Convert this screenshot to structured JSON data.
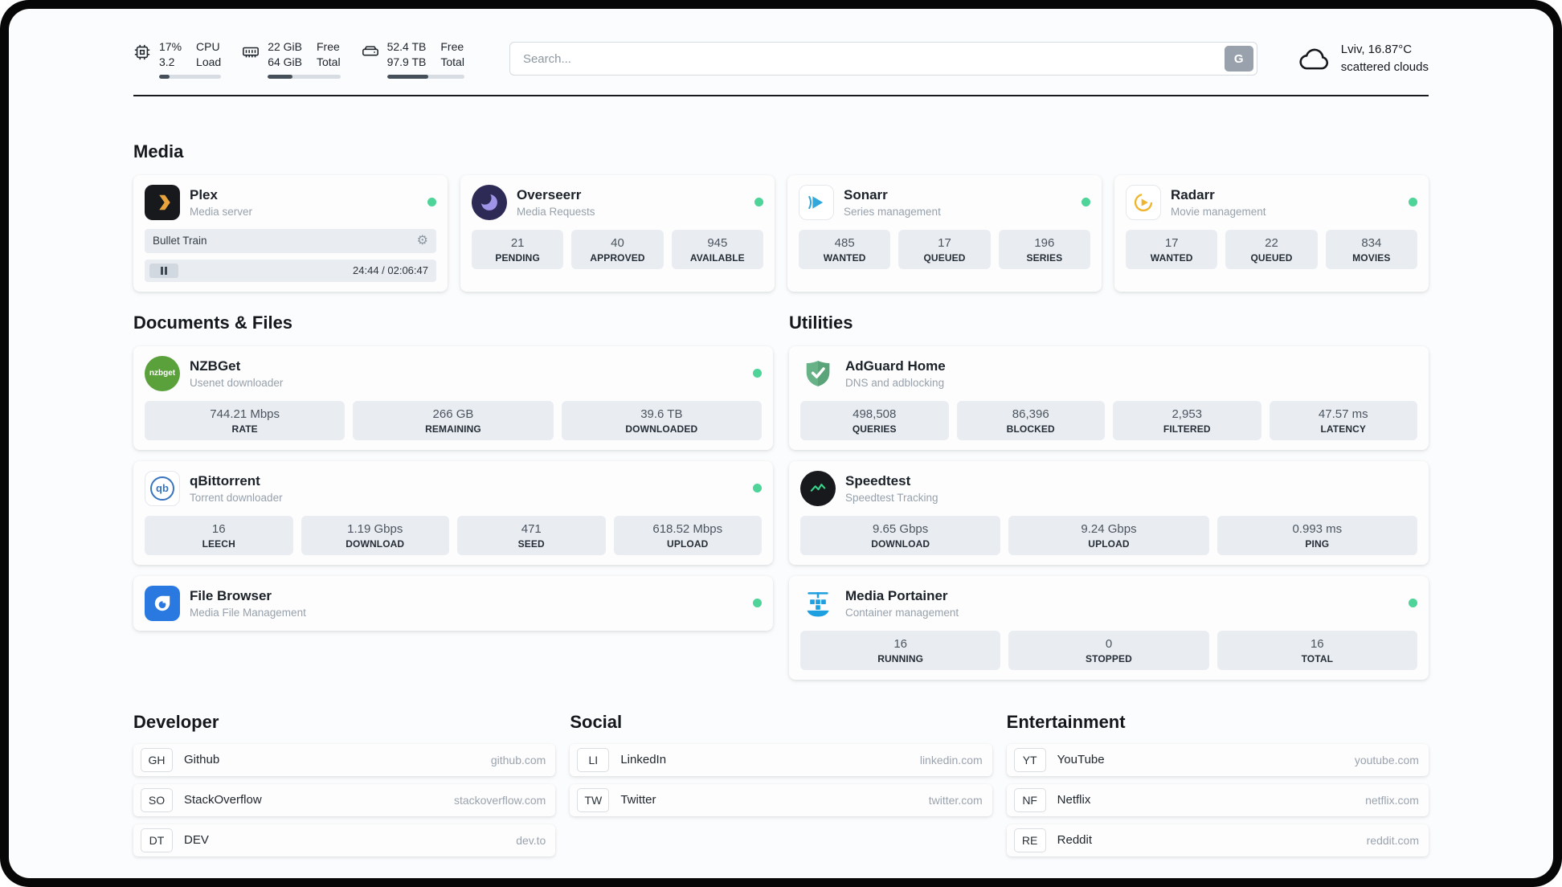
{
  "theme": {
    "status_green": "#4ed398",
    "plex_gold": "#e8a33d",
    "overseerr_purple": "#9f94e8",
    "sonarr_blue": "#32a7da",
    "radarr_gold": "#f0b52e",
    "nzbget_green": "#5aa13c",
    "qbittorrent_blue": "#3873c0",
    "filebrowser_blue": "#2a79e0",
    "adguard_green": "#67b287",
    "speedtest_green": "#35d488",
    "portainer_blue": "#1d9fe0"
  },
  "header": {
    "cpu": {
      "values": [
        "17%",
        "3.2"
      ],
      "labels": [
        "CPU",
        "Load"
      ],
      "progress": 17
    },
    "ram": {
      "values": [
        "22 GiB",
        "64 GiB"
      ],
      "labels": [
        "Free",
        "Total"
      ],
      "progress": 34
    },
    "disk": {
      "values": [
        "52.4 TB",
        "97.9 TB"
      ],
      "labels": [
        "Free",
        "Total"
      ],
      "progress": 53
    },
    "search": {
      "placeholder": "Search...",
      "button_label": "G"
    },
    "weather": {
      "location": "Lviv, 16.87°C",
      "condition": "scattered clouds"
    }
  },
  "media": {
    "title": "Media",
    "plex": {
      "name": "Plex",
      "desc": "Media server",
      "now_playing": "Bullet Train",
      "time": "24:44 / 02:06:47"
    },
    "overseerr": {
      "name": "Overseerr",
      "desc": "Media Requests",
      "stats": [
        {
          "value": "21",
          "label": "PENDING"
        },
        {
          "value": "40",
          "label": "APPROVED"
        },
        {
          "value": "945",
          "label": "AVAILABLE"
        }
      ]
    },
    "sonarr": {
      "name": "Sonarr",
      "desc": "Series management",
      "stats": [
        {
          "value": "485",
          "label": "WANTED"
        },
        {
          "value": "17",
          "label": "QUEUED"
        },
        {
          "value": "196",
          "label": "SERIES"
        }
      ]
    },
    "radarr": {
      "name": "Radarr",
      "desc": "Movie management",
      "stats": [
        {
          "value": "17",
          "label": "WANTED"
        },
        {
          "value": "22",
          "label": "QUEUED"
        },
        {
          "value": "834",
          "label": "MOVIES"
        }
      ]
    }
  },
  "documents": {
    "title": "Documents & Files",
    "nzbget": {
      "name": "NZBGet",
      "desc": "Usenet downloader",
      "icon_text": "nzbget",
      "stats": [
        {
          "value": "744.21 Mbps",
          "label": "RATE"
        },
        {
          "value": "266 GB",
          "label": "REMAINING"
        },
        {
          "value": "39.6 TB",
          "label": "DOWNLOADED"
        }
      ]
    },
    "qbittorrent": {
      "name": "qBittorrent",
      "desc": "Torrent downloader",
      "icon_text": "qb",
      "stats": [
        {
          "value": "16",
          "label": "LEECH"
        },
        {
          "value": "1.19 Gbps",
          "label": "DOWNLOAD"
        },
        {
          "value": "471",
          "label": "SEED"
        },
        {
          "value": "618.52 Mbps",
          "label": "UPLOAD"
        }
      ]
    },
    "filebrowser": {
      "name": "File Browser",
      "desc": "Media File Management"
    }
  },
  "utilities": {
    "title": "Utilities",
    "adguard": {
      "name": "AdGuard Home",
      "desc": "DNS and adblocking",
      "stats": [
        {
          "value": "498,508",
          "label": "QUERIES"
        },
        {
          "value": "86,396",
          "label": "BLOCKED"
        },
        {
          "value": "2,953",
          "label": "FILTERED"
        },
        {
          "value": "47.57 ms",
          "label": "LATENCY"
        }
      ]
    },
    "speedtest": {
      "name": "Speedtest",
      "desc": "Speedtest Tracking",
      "stats": [
        {
          "value": "9.65 Gbps",
          "label": "DOWNLOAD"
        },
        {
          "value": "9.24 Gbps",
          "label": "UPLOAD"
        },
        {
          "value": "0.993 ms",
          "label": "PING"
        }
      ]
    },
    "portainer": {
      "name": "Media Portainer",
      "desc": "Container management",
      "stats": [
        {
          "value": "16",
          "label": "RUNNING"
        },
        {
          "value": "0",
          "label": "STOPPED"
        },
        {
          "value": "16",
          "label": "TOTAL"
        }
      ]
    }
  },
  "bookmarks": {
    "developer": {
      "title": "Developer",
      "items": [
        {
          "abbr": "GH",
          "name": "Github",
          "url": "github.com"
        },
        {
          "abbr": "SO",
          "name": "StackOverflow",
          "url": "stackoverflow.com"
        },
        {
          "abbr": "DT",
          "name": "DEV",
          "url": "dev.to"
        }
      ]
    },
    "social": {
      "title": "Social",
      "items": [
        {
          "abbr": "LI",
          "name": "LinkedIn",
          "url": "linkedin.com"
        },
        {
          "abbr": "TW",
          "name": "Twitter",
          "url": "twitter.com"
        }
      ]
    },
    "entertainment": {
      "title": "Entertainment",
      "items": [
        {
          "abbr": "YT",
          "name": "YouTube",
          "url": "youtube.com"
        },
        {
          "abbr": "NF",
          "name": "Netflix",
          "url": "netflix.com"
        },
        {
          "abbr": "RE",
          "name": "Reddit",
          "url": "reddit.com"
        }
      ]
    }
  }
}
